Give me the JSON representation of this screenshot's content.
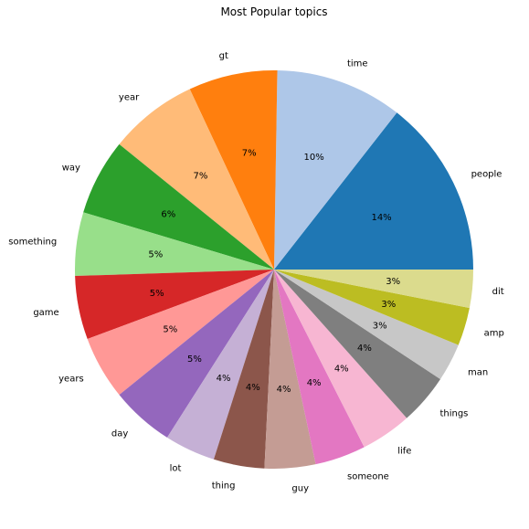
{
  "chart_data": {
    "type": "pie",
    "title": "Most Popular topics",
    "start_angle_deg": 0,
    "direction": "counterclockwise",
    "slices": [
      {
        "label": "people",
        "value": 14,
        "pct_label": "14%",
        "color": "#1f77b4"
      },
      {
        "label": "time",
        "value": 10,
        "pct_label": "10%",
        "color": "#aec7e8"
      },
      {
        "label": "gt",
        "value": 7,
        "pct_label": "7%",
        "color": "#ff7f0e"
      },
      {
        "label": "year",
        "value": 7,
        "pct_label": "7%",
        "color": "#ffbb78"
      },
      {
        "label": "way",
        "value": 6,
        "pct_label": "6%",
        "color": "#2ca02c"
      },
      {
        "label": "something",
        "value": 5,
        "pct_label": "5%",
        "color": "#98df8a"
      },
      {
        "label": "game",
        "value": 5,
        "pct_label": "5%",
        "color": "#d62728"
      },
      {
        "label": "years",
        "value": 5,
        "pct_label": "5%",
        "color": "#ff9896"
      },
      {
        "label": "day",
        "value": 5,
        "pct_label": "5%",
        "color": "#9467bd"
      },
      {
        "label": "lot",
        "value": 4,
        "pct_label": "4%",
        "color": "#c5b0d5"
      },
      {
        "label": "thing",
        "value": 4,
        "pct_label": "4%",
        "color": "#8c564b"
      },
      {
        "label": "guy",
        "value": 4,
        "pct_label": "4%",
        "color": "#c49c94"
      },
      {
        "label": "someone",
        "value": 4,
        "pct_label": "4%",
        "color": "#e377c2"
      },
      {
        "label": "life",
        "value": 4,
        "pct_label": "4%",
        "color": "#f7b6d2"
      },
      {
        "label": "things",
        "value": 4,
        "pct_label": "4%",
        "color": "#7f7f7f"
      },
      {
        "label": "man",
        "value": 3,
        "pct_label": "3%",
        "color": "#c7c7c7"
      },
      {
        "label": "amp",
        "value": 3,
        "pct_label": "3%",
        "color": "#bcbd22"
      },
      {
        "label": "dit",
        "value": 3,
        "pct_label": "3%",
        "color": "#dbdb8d"
      }
    ]
  }
}
